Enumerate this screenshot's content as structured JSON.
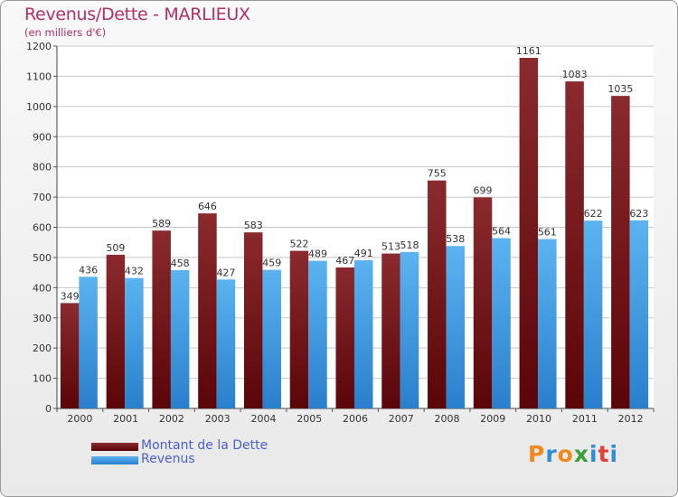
{
  "chart_data": {
    "type": "bar",
    "title": "Revenus/Dette - MARLIEUX",
    "subtitle": "(en milliers d'€)",
    "categories": [
      "2000",
      "2001",
      "2002",
      "2003",
      "2004",
      "2005",
      "2006",
      "2007",
      "2008",
      "2009",
      "2010",
      "2011",
      "2012"
    ],
    "series": [
      {
        "name": "Montant de la Dette",
        "color": "#6b0a10",
        "values": [
          349,
          509,
          589,
          646,
          583,
          522,
          467,
          513,
          755,
          699,
          1161,
          1083,
          1035
        ]
      },
      {
        "name": "Revenus",
        "color": "#3a9ae6",
        "values": [
          436,
          432,
          458,
          427,
          459,
          489,
          491,
          518,
          538,
          564,
          561,
          622,
          623
        ]
      }
    ],
    "yticks": [
      "0",
      "100",
      "200",
      "300",
      "400",
      "500",
      "600",
      "700",
      "800",
      "900",
      "1000",
      "1100",
      "1200"
    ],
    "ylim": [
      0,
      1200
    ],
    "grid": true,
    "legend": "bottom-left"
  },
  "logo": {
    "letters": [
      "P",
      "r",
      "o",
      "x",
      "i",
      "t",
      "i"
    ],
    "colors": [
      "#f08a1c",
      "#2e8fd8",
      "#f08a1c",
      "#3aa03a",
      "#2e8fd8",
      "#e0413a",
      "#2e8fd8"
    ]
  }
}
